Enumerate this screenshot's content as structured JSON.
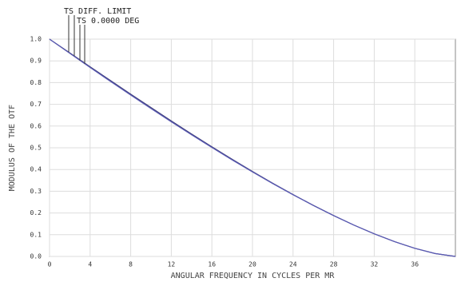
{
  "chart_data": {
    "type": "line",
    "xlabel": "ANGULAR FREQUENCY IN CYCLES PER MR",
    "ylabel": "MODULUS OF THE OTF",
    "x": [
      0,
      2,
      4,
      6,
      8,
      10,
      12,
      14,
      16,
      18,
      20,
      22,
      24,
      26,
      28,
      30,
      32,
      34,
      36,
      38,
      40
    ],
    "series": [
      {
        "name": "TS DIFF. LIMIT",
        "color": "#3c3c78",
        "values": [
          1,
          0.9364,
          0.8729,
          0.8097,
          0.747,
          0.685,
          0.6238,
          0.5636,
          0.5046,
          0.447,
          0.391,
          0.3368,
          0.2848,
          0.2351,
          0.1881,
          0.1443,
          0.1041,
          0.0681,
          0.0374,
          0.0133,
          0
        ]
      },
      {
        "name": "TS 0.0000 DEG",
        "color": "#5a5ab4",
        "values": [
          1,
          0.9345,
          0.8695,
          0.8055,
          0.7425,
          0.6805,
          0.6195,
          0.5598,
          0.5012,
          0.4442,
          0.3888,
          0.3352,
          0.2837,
          0.2344,
          0.1877,
          0.1441,
          0.104,
          0.0681,
          0.0374,
          0.0133,
          0
        ]
      }
    ],
    "xlim": [
      0,
      40
    ],
    "xticks": [
      0,
      4,
      8,
      12,
      16,
      20,
      24,
      28,
      32,
      36
    ],
    "ylim": [
      0,
      1
    ],
    "yticks": [
      {
        "value": 0,
        "label": "0.0"
      },
      0.1,
      0.2,
      0.3,
      0.4,
      0.5,
      0.6,
      0.7,
      0.8,
      0.9,
      {
        "value": 1,
        "label": "1.0"
      }
    ],
    "grid": true
  }
}
